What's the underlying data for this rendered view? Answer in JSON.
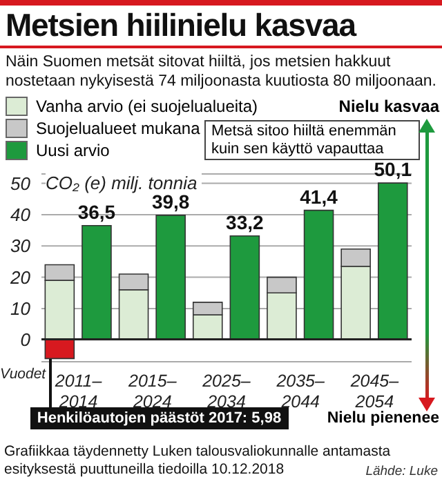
{
  "chart_data": {
    "type": "bar",
    "title": "Metsien hiilinielu kasvaa",
    "subtitle": "Näin Suomen metsät sitovat hiiltä, jos metsien hakkuut nostetaan nykyisestä 74 miljoonasta kuutiosta 80 miljoonaan.",
    "xlabel": "Vuodet",
    "ylabel": "CO₂ (e) milj. tonnia",
    "categories": [
      "2011–2014",
      null,
      "2015–2024",
      null,
      "2025–2034",
      null,
      "2035–2044",
      null,
      "2045–2054",
      null
    ],
    "series": [
      {
        "name": "Vanha arvio (ei suojelualueita)",
        "color": "#dcecd5",
        "values": [
          19,
          null,
          16,
          null,
          8,
          null,
          15,
          null,
          23.5,
          null
        ]
      },
      {
        "name": "Suojelualueet mukana",
        "color": "#c8c8c8",
        "values": [
          5,
          null,
          5,
          null,
          4,
          null,
          5,
          null,
          5.5,
          null
        ]
      },
      {
        "color": "#d7191f",
        "values": [
          -5.98,
          null,
          null,
          null,
          null,
          null,
          null,
          null,
          null,
          null
        ]
      },
      {
        "name": "Uusi arvio",
        "color": "#1e9a3e",
        "values": [
          null,
          36.5,
          null,
          39.8,
          null,
          33.2,
          null,
          41.4,
          null,
          50.1
        ],
        "value_labels": [
          null,
          "36,5",
          null,
          "39,8",
          null,
          "33,2",
          null,
          "41,4",
          null,
          "50,1"
        ]
      }
    ],
    "stacked": true,
    "ylim": [
      -7,
      53
    ],
    "yticks": [
      0,
      10,
      20,
      30,
      40,
      50
    ],
    "grid": "y",
    "legend": "top left",
    "annotations": [
      "Metsä sitoo hiiltä enemmän kuin sen käyttö vapauttaa",
      "Nielu kasvaa",
      "Nielu pienenee",
      "Henkilöautojen päästöt 2017: 5,98",
      "Grafiikkaa täydennetty Luken talousvaliokunnalle antamasta esityksestä puuttuneilla tiedoilla 10.12.2018",
      "Lähde: Luke"
    ]
  }
}
